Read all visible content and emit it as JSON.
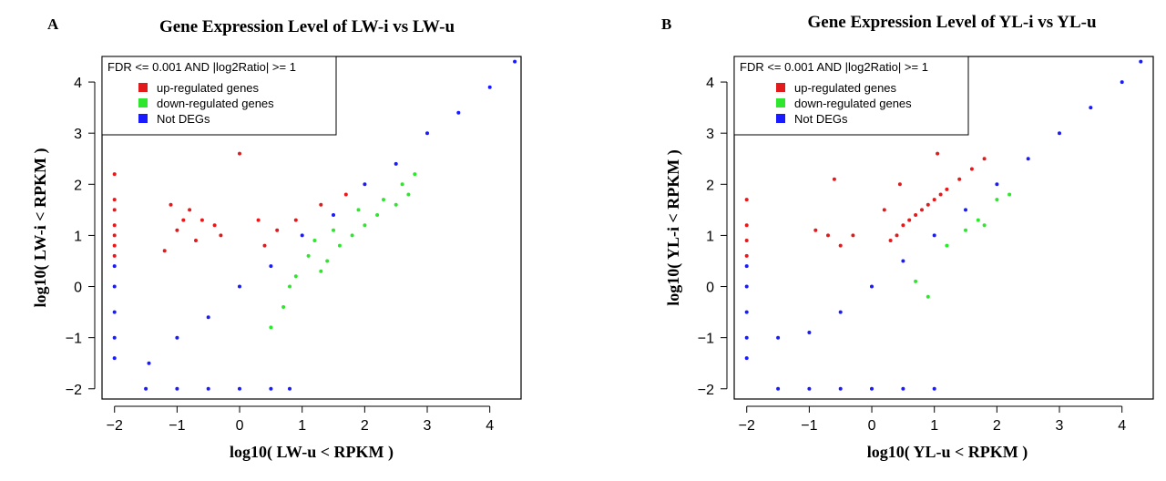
{
  "figure": {
    "note": ""
  },
  "colors": {
    "up": "#e31a1c",
    "down": "#2ee62e",
    "not": "#1a1aff"
  },
  "chart_data": [
    {
      "type": "scatter",
      "panel_letter": "A",
      "title": "Gene Expression Level of LW-i vs LW-u",
      "xlabel": "log10( LW-u < RPKM )",
      "ylabel": "log10( LW-i < RPKM )",
      "xlim": [
        -2.2,
        4.5
      ],
      "ylim": [
        -2.2,
        4.5
      ],
      "xticks": [
        -2,
        -1,
        0,
        1,
        2,
        3,
        4
      ],
      "yticks": [
        -2,
        -1,
        0,
        1,
        2,
        3,
        4
      ],
      "grid": false,
      "legend": {
        "placement": "top-left",
        "header": "FDR <=  0.001  AND |log2Ratio| >=  1",
        "entries": [
          "up-regulated genes",
          "down-regulated genes",
          "Not DEGs"
        ]
      },
      "series": [
        {
          "name": "up-regulated genes",
          "points": [
            [
              -2.0,
              2.2
            ],
            [
              -2.0,
              1.7
            ],
            [
              -2.0,
              1.5
            ],
            [
              -2.0,
              1.2
            ],
            [
              -2.0,
              1.0
            ],
            [
              -2.0,
              0.8
            ],
            [
              -2.0,
              0.6
            ],
            [
              0.0,
              2.6
            ],
            [
              -1.1,
              1.6
            ],
            [
              -0.8,
              1.5
            ],
            [
              -0.6,
              1.3
            ],
            [
              -0.4,
              1.2
            ],
            [
              -1.2,
              0.7
            ],
            [
              -1.0,
              1.1
            ],
            [
              -0.7,
              0.9
            ],
            [
              0.3,
              1.3
            ],
            [
              0.6,
              1.1
            ],
            [
              0.9,
              1.3
            ],
            [
              1.3,
              1.6
            ],
            [
              1.7,
              1.8
            ],
            [
              -0.9,
              1.3
            ],
            [
              -0.3,
              1.0
            ],
            [
              0.4,
              0.8
            ]
          ]
        },
        {
          "name": "down-regulated genes",
          "points": [
            [
              2.6,
              2.0
            ],
            [
              2.7,
              1.8
            ],
            [
              2.5,
              1.6
            ],
            [
              2.8,
              2.2
            ],
            [
              2.2,
              1.4
            ],
            [
              2.0,
              1.2
            ],
            [
              1.8,
              1.0
            ],
            [
              1.6,
              0.8
            ],
            [
              1.4,
              0.5
            ],
            [
              1.3,
              0.3
            ],
            [
              1.1,
              0.6
            ],
            [
              0.9,
              0.2
            ],
            [
              0.8,
              0.0
            ],
            [
              0.7,
              -0.4
            ],
            [
              0.5,
              -0.8
            ],
            [
              1.5,
              1.1
            ],
            [
              1.9,
              1.5
            ],
            [
              2.3,
              1.7
            ],
            [
              1.2,
              0.9
            ]
          ]
        },
        {
          "name": "Not DEGs",
          "points": [
            [
              -2.0,
              -1.4
            ],
            [
              -2.0,
              -1.0
            ],
            [
              -2.0,
              -0.5
            ],
            [
              -2.0,
              0.0
            ],
            [
              -2.0,
              0.4
            ],
            [
              -1.5,
              -2.0
            ],
            [
              -1.0,
              -2.0
            ],
            [
              -0.5,
              -2.0
            ],
            [
              0.0,
              -2.0
            ],
            [
              0.5,
              -2.0
            ],
            [
              0.8,
              -2.0
            ],
            [
              -1.45,
              -1.5
            ],
            [
              -1.0,
              -1.0
            ],
            [
              -0.5,
              -0.6
            ],
            [
              0.0,
              0.0
            ],
            [
              0.5,
              0.4
            ],
            [
              1.0,
              1.0
            ],
            [
              1.5,
              1.4
            ],
            [
              2.0,
              2.0
            ],
            [
              2.5,
              2.4
            ],
            [
              3.0,
              3.0
            ],
            [
              3.5,
              3.4
            ],
            [
              4.0,
              3.9
            ],
            [
              4.4,
              4.4
            ]
          ]
        }
      ]
    },
    {
      "type": "scatter",
      "panel_letter": "B",
      "title": "Gene Expression Level of YL-i vs YL-u",
      "xlabel": "log10( YL-u < RPKM )",
      "ylabel": "log10( YL-i < RPKM )",
      "xlim": [
        -2.2,
        4.5
      ],
      "ylim": [
        -2.2,
        4.5
      ],
      "xticks": [
        -2,
        -1,
        0,
        1,
        2,
        3,
        4
      ],
      "yticks": [
        -2,
        -1,
        0,
        1,
        2,
        3,
        4
      ],
      "grid": false,
      "legend": {
        "placement": "top-left",
        "header": "FDR <=  0.001  AND |log2Ratio| >=  1",
        "entries": [
          "up-regulated genes",
          "down-regulated genes",
          "Not DEGs"
        ]
      },
      "series": [
        {
          "name": "up-regulated genes",
          "points": [
            [
              -2.0,
              1.7
            ],
            [
              -2.0,
              1.2
            ],
            [
              -2.0,
              0.9
            ],
            [
              -2.0,
              0.6
            ],
            [
              -0.6,
              2.1
            ],
            [
              -0.9,
              1.1
            ],
            [
              -0.7,
              1.0
            ],
            [
              -0.5,
              0.8
            ],
            [
              -0.3,
              1.0
            ],
            [
              0.2,
              1.5
            ],
            [
              0.5,
              1.2
            ],
            [
              0.6,
              1.3
            ],
            [
              0.7,
              1.4
            ],
            [
              0.8,
              1.5
            ],
            [
              0.9,
              1.6
            ],
            [
              1.0,
              1.7
            ],
            [
              1.1,
              1.8
            ],
            [
              1.2,
              1.9
            ],
            [
              1.4,
              2.1
            ],
            [
              1.6,
              2.3
            ],
            [
              1.8,
              2.5
            ],
            [
              0.4,
              1.0
            ],
            [
              0.3,
              0.9
            ],
            [
              0.45,
              2.0
            ],
            [
              1.05,
              2.6
            ]
          ]
        },
        {
          "name": "down-regulated genes",
          "points": [
            [
              1.2,
              0.8
            ],
            [
              1.5,
              1.1
            ],
            [
              1.7,
              1.3
            ],
            [
              2.0,
              1.7
            ],
            [
              2.2,
              1.8
            ],
            [
              1.8,
              1.2
            ],
            [
              0.9,
              -0.2
            ],
            [
              0.7,
              0.1
            ]
          ]
        },
        {
          "name": "Not DEGs",
          "points": [
            [
              -2.0,
              -1.4
            ],
            [
              -2.0,
              -1.0
            ],
            [
              -2.0,
              -0.5
            ],
            [
              -2.0,
              0.0
            ],
            [
              -2.0,
              0.4
            ],
            [
              -1.5,
              -2.0
            ],
            [
              -1.0,
              -2.0
            ],
            [
              -0.5,
              -2.0
            ],
            [
              0.0,
              -2.0
            ],
            [
              0.5,
              -2.0
            ],
            [
              1.0,
              -2.0
            ],
            [
              -1.5,
              -1.0
            ],
            [
              -1.0,
              -0.9
            ],
            [
              -0.5,
              -0.5
            ],
            [
              0.0,
              0.0
            ],
            [
              0.5,
              0.5
            ],
            [
              1.0,
              1.0
            ],
            [
              1.5,
              1.5
            ],
            [
              2.0,
              2.0
            ],
            [
              2.5,
              2.5
            ],
            [
              3.0,
              3.0
            ],
            [
              3.5,
              3.5
            ],
            [
              4.0,
              4.0
            ],
            [
              4.3,
              4.4
            ]
          ]
        }
      ]
    }
  ]
}
